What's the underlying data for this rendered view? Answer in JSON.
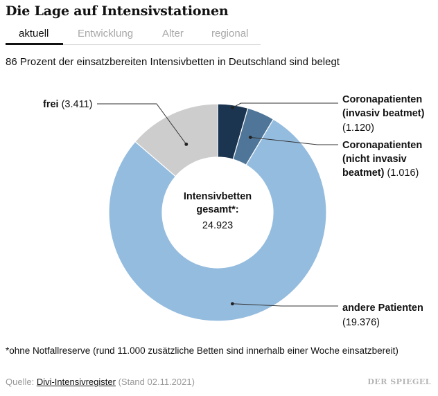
{
  "header": {
    "title": "Die Lage auf Intensivstationen",
    "tabs": [
      {
        "label": "aktuell",
        "active": true
      },
      {
        "label": "Entwicklung",
        "active": false
      },
      {
        "label": "Alter",
        "active": false
      },
      {
        "label": "regional",
        "active": false
      }
    ]
  },
  "subtitle": "86 Prozent der einsatzbereiten Intensivbetten in Deutschland sind belegt",
  "chart_data": {
    "type": "pie",
    "variant": "donut",
    "center_label": {
      "line1": "Intensivbetten",
      "line2": "gesamt*:",
      "value": "24.923"
    },
    "slices": [
      {
        "name": "Coronapatienten (invasiv beatmet)",
        "value": 1120,
        "value_label": "(1.120)",
        "color": "#1b3550",
        "label_lines": [
          "Coronapatienten",
          "(invasiv beatmet)"
        ]
      },
      {
        "name": "Coronapatienten (nicht invasiv beatmet)",
        "value": 1016,
        "value_label": "(1.016)",
        "color": "#4f7698",
        "label_lines": [
          "Coronapatienten",
          "(nicht invasiv",
          "beatmet)"
        ]
      },
      {
        "name": "andere Patienten",
        "value": 19376,
        "value_label": "(19.376)",
        "color": "#94bcdf",
        "label_lines": [
          "andere Patienten"
        ]
      },
      {
        "name": "frei",
        "value": 3411,
        "value_label": "(3.411)",
        "color": "#cdcdcd",
        "label_lines": [
          "frei"
        ]
      }
    ]
  },
  "footnote": "*ohne Notfallreserve (rund 11.000 zusätzliche Betten sind innerhalb einer Woche einsatzbereit)",
  "source": {
    "prefix": "Quelle: ",
    "link": "Divi-Intensivregister",
    "suffix": " (Stand 02.11.2021)"
  },
  "brand": "DER SPIEGEL"
}
